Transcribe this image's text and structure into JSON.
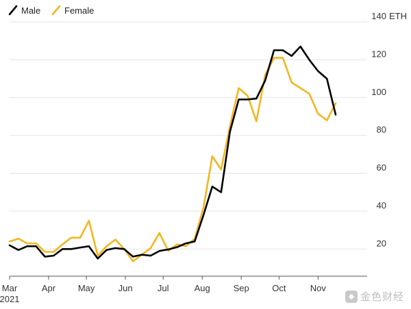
{
  "chart_data": {
    "type": "line",
    "unit_label": "ETH",
    "ylim": [
      10,
      140
    ],
    "yticks": [
      20,
      40,
      60,
      80,
      100,
      120,
      140
    ],
    "xlim": [
      "2021-03-01",
      "2021-12-10"
    ],
    "x_ticks": [
      {
        "date": "2021-03-01",
        "label": "Mar"
      },
      {
        "date": "2021-04-01",
        "label": "Apr"
      },
      {
        "date": "2021-05-01",
        "label": "May"
      },
      {
        "date": "2021-06-01",
        "label": "Jun"
      },
      {
        "date": "2021-07-01",
        "label": "Jul"
      },
      {
        "date": "2021-08-01",
        "label": "Aug"
      },
      {
        "date": "2021-09-01",
        "label": "Sep"
      },
      {
        "date": "2021-10-01",
        "label": "Oct"
      },
      {
        "date": "2021-11-01",
        "label": "Nov"
      }
    ],
    "year_label": "2021",
    "grid": "horizontal",
    "legend_position": "top-left",
    "series": [
      {
        "name": "Male",
        "color": "#000000",
        "points": [
          [
            "2021-03-01",
            22
          ],
          [
            "2021-03-08",
            19.5
          ],
          [
            "2021-03-15",
            21.5
          ],
          [
            "2021-03-22",
            21.5
          ],
          [
            "2021-03-29",
            16
          ],
          [
            "2021-04-05",
            16.5
          ],
          [
            "2021-04-12",
            20
          ],
          [
            "2021-04-19",
            20
          ],
          [
            "2021-04-26",
            20.8
          ],
          [
            "2021-05-03",
            21.5
          ],
          [
            "2021-05-10",
            15
          ],
          [
            "2021-05-17",
            19.5
          ],
          [
            "2021-05-24",
            20.5
          ],
          [
            "2021-05-31",
            20
          ],
          [
            "2021-06-07",
            16
          ],
          [
            "2021-06-14",
            17
          ],
          [
            "2021-06-21",
            16.5
          ],
          [
            "2021-06-28",
            19
          ],
          [
            "2021-07-05",
            19.8
          ],
          [
            "2021-07-12",
            21
          ],
          [
            "2021-07-19",
            23
          ],
          [
            "2021-07-26",
            24
          ],
          [
            "2021-08-02",
            38
          ],
          [
            "2021-08-09",
            53
          ],
          [
            "2021-08-16",
            50
          ],
          [
            "2021-08-23",
            82
          ],
          [
            "2021-08-30",
            99
          ],
          [
            "2021-09-06",
            99
          ],
          [
            "2021-09-13",
            99.5
          ],
          [
            "2021-09-20",
            109
          ],
          [
            "2021-09-27",
            125
          ],
          [
            "2021-10-04",
            125
          ],
          [
            "2021-10-11",
            122
          ],
          [
            "2021-10-18",
            127
          ],
          [
            "2021-10-25",
            120
          ],
          [
            "2021-11-01",
            114
          ],
          [
            "2021-11-08",
            110
          ],
          [
            "2021-11-15",
            91
          ]
        ]
      },
      {
        "name": "Female",
        "color": "#f3b61f",
        "points": [
          [
            "2021-03-01",
            24
          ],
          [
            "2021-03-08",
            25.5
          ],
          [
            "2021-03-15",
            23
          ],
          [
            "2021-03-22",
            23
          ],
          [
            "2021-03-29",
            18.5
          ],
          [
            "2021-04-05",
            18.5
          ],
          [
            "2021-04-12",
            22.5
          ],
          [
            "2021-04-19",
            26
          ],
          [
            "2021-04-26",
            26
          ],
          [
            "2021-05-03",
            35
          ],
          [
            "2021-05-10",
            16.5
          ],
          [
            "2021-05-17",
            21.5
          ],
          [
            "2021-05-24",
            25
          ],
          [
            "2021-05-31",
            20
          ],
          [
            "2021-06-07",
            13.5
          ],
          [
            "2021-06-14",
            17
          ],
          [
            "2021-06-21",
            20.5
          ],
          [
            "2021-06-28",
            28.5
          ],
          [
            "2021-07-05",
            19
          ],
          [
            "2021-07-12",
            22.5
          ],
          [
            "2021-07-19",
            21.5
          ],
          [
            "2021-07-26",
            25.5
          ],
          [
            "2021-08-02",
            42
          ],
          [
            "2021-08-09",
            69
          ],
          [
            "2021-08-16",
            62
          ],
          [
            "2021-08-23",
            85
          ],
          [
            "2021-08-30",
            105
          ],
          [
            "2021-09-06",
            101
          ],
          [
            "2021-09-13",
            87.5
          ],
          [
            "2021-09-20",
            112
          ],
          [
            "2021-09-27",
            121
          ],
          [
            "2021-10-04",
            121
          ],
          [
            "2021-10-11",
            108
          ],
          [
            "2021-10-18",
            105
          ],
          [
            "2021-10-25",
            102
          ],
          [
            "2021-11-01",
            91.5
          ],
          [
            "2021-11-08",
            88
          ],
          [
            "2021-11-15",
            97
          ]
        ]
      }
    ]
  },
  "watermark": {
    "text": "金色财经"
  }
}
